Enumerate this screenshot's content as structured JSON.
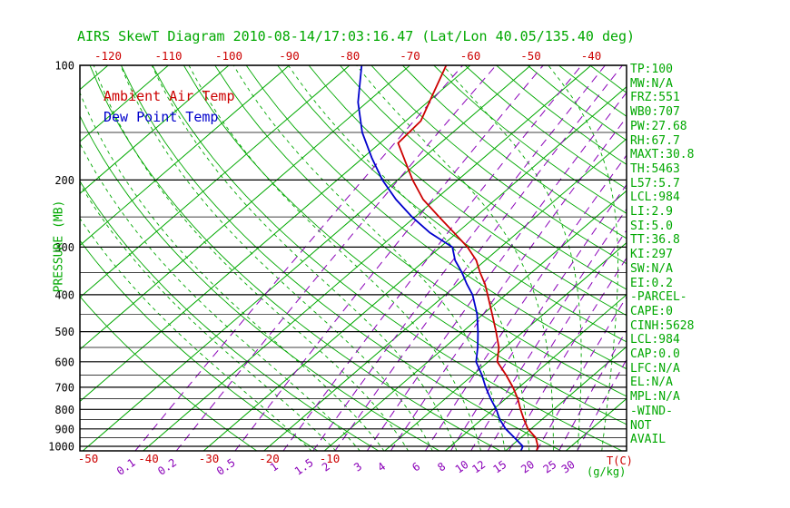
{
  "legend": {
    "temp": "Ambient Air Temp",
    "dew": "Dew Point Temp"
  },
  "axes": {
    "pressure_label": "PRESSURE (MB)",
    "pressure_ticks": [
      100,
      200,
      300,
      400,
      500,
      600,
      700,
      800,
      900,
      1000
    ],
    "top_temp_ticks": [
      -120,
      -110,
      -100,
      -90,
      -80,
      -70,
      -60,
      -50,
      -40
    ],
    "bottom_temp_ticks": [
      -50,
      -40,
      -30,
      -20,
      -10
    ],
    "temp_unit_label": "T(C)",
    "mixing_ratio_values": [
      0.1,
      0.2,
      0.5,
      1,
      1.5,
      2,
      3,
      4,
      6,
      8,
      10,
      12,
      15,
      20,
      25,
      30
    ],
    "mixing_ratio_unit_label": "(g/kg)"
  },
  "stats": [
    "TP:100",
    "MW:N/A",
    "FRZ:551",
    "WB0:707",
    "PW:27.68",
    "RH:67.7",
    "MAXT:30.8",
    "TH:5463",
    "L57:5.7",
    "LCL:984",
    "LI:2.9",
    "SI:5.0",
    "TT:36.8",
    "KI:297",
    "SW:N/A",
    "EI:0.2",
    "-PARCEL-",
    "CAPE:0",
    "CINH:5628",
    "LCL:984",
    "CAP:0.0",
    "LFC:N/A",
    "EL:N/A",
    "MPL:N/A",
    "-WIND-",
    "NOT",
    "AVAIL"
  ],
  "colors": {
    "green": "#00A800",
    "red": "#CC0000",
    "blue": "#0000CC",
    "purple": "#8A00B8",
    "black": "#000000"
  },
  "chart_data": {
    "type": "line",
    "title": "AIRS SkewT Diagram 2010-08-14/17:03:16.47 (Lat/Lon 40.05/135.40 deg)",
    "xlabel": "T(C)",
    "ylabel": "PRESSURE (MB)",
    "x_range_c": [
      -120,
      40
    ],
    "pressure_range_mb": [
      100,
      1000
    ],
    "pressure_scale": "log",
    "skew": true,
    "series": [
      {
        "name": "Ambient Air Temp",
        "color": "#CC0000",
        "points": [
          [
            100,
            -64
          ],
          [
            120,
            -60.5
          ],
          [
            140,
            -57.5
          ],
          [
            160,
            -57
          ],
          [
            180,
            -52
          ],
          [
            200,
            -47.5
          ],
          [
            225,
            -42
          ],
          [
            250,
            -36
          ],
          [
            275,
            -30.5
          ],
          [
            300,
            -25.5
          ],
          [
            325,
            -21.5
          ],
          [
            350,
            -18.5
          ],
          [
            375,
            -15.5
          ],
          [
            400,
            -13
          ],
          [
            450,
            -8.5
          ],
          [
            500,
            -4.5
          ],
          [
            550,
            -1
          ],
          [
            600,
            1.5
          ],
          [
            650,
            5.5
          ],
          [
            700,
            9
          ],
          [
            750,
            12
          ],
          [
            800,
            14.5
          ],
          [
            850,
            17
          ],
          [
            900,
            19.5
          ],
          [
            950,
            22.5
          ],
          [
            1000,
            24.5
          ],
          [
            1030,
            25.2
          ]
        ]
      },
      {
        "name": "Dew Point Temp",
        "color": "#0000CC",
        "points": [
          [
            100,
            -78
          ],
          [
            125,
            -71.5
          ],
          [
            150,
            -65
          ],
          [
            175,
            -58.5
          ],
          [
            200,
            -52.5
          ],
          [
            225,
            -46.5
          ],
          [
            250,
            -40.5
          ],
          [
            275,
            -34.5
          ],
          [
            300,
            -28
          ],
          [
            325,
            -25
          ],
          [
            350,
            -21.5
          ],
          [
            375,
            -18.5
          ],
          [
            400,
            -15.5
          ],
          [
            450,
            -11
          ],
          [
            500,
            -7.5
          ],
          [
            550,
            -4.5
          ],
          [
            600,
            -2
          ],
          [
            650,
            1.5
          ],
          [
            700,
            4.5
          ],
          [
            750,
            7.5
          ],
          [
            800,
            10.5
          ],
          [
            850,
            13
          ],
          [
            900,
            15.8
          ],
          [
            950,
            19
          ],
          [
            1000,
            22
          ],
          [
            1030,
            22.6
          ]
        ]
      }
    ],
    "grid": {
      "isotherms_c": {
        "min": -120,
        "max": 40,
        "step": 10
      },
      "dry_adiabats_k": {
        "min": 250,
        "max": 450,
        "step": 10
      },
      "moist_adiabats_start_c": {
        "min": -12,
        "max": 36,
        "step": 4
      },
      "mixing_ratio_g_kg": [
        0.1,
        0.2,
        0.5,
        1,
        1.5,
        2,
        3,
        4,
        6,
        8,
        10,
        12,
        15,
        20,
        25,
        30
      ],
      "pressure_lines_mb": {
        "min": 100,
        "max": 1000,
        "step": 50
      }
    }
  }
}
